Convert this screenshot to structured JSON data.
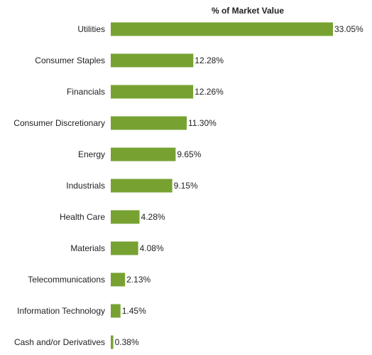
{
  "chart_data": {
    "type": "bar",
    "orientation": "horizontal",
    "title": "% of Market Value",
    "categories": [
      "Utilities",
      "Consumer Staples",
      "Financials",
      "Consumer Discretionary",
      "Energy",
      "Industrials",
      "Health Care",
      "Materials",
      "Telecommunications",
      "Information Technology",
      "Cash and/or Derivatives"
    ],
    "values": [
      33.05,
      12.28,
      12.26,
      11.3,
      9.65,
      9.15,
      4.28,
      4.08,
      2.13,
      1.45,
      0.38
    ],
    "value_labels": [
      "33.05%",
      "12.28%",
      "12.26%",
      "11.30%",
      "9.65%",
      "9.15%",
      "4.28%",
      "4.08%",
      "2.13%",
      "1.45%",
      "0.38%"
    ],
    "xlim": [
      0,
      33.05
    ],
    "grid": false,
    "bar_color": "#77a232"
  }
}
